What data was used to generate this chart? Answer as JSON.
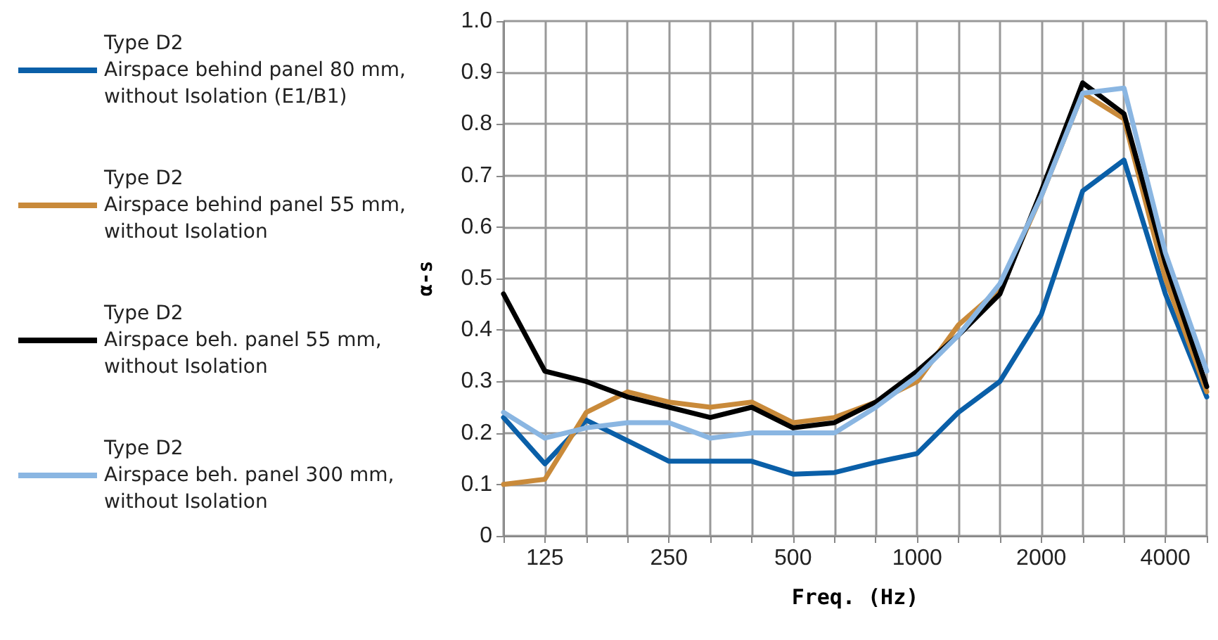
{
  "chart_data": {
    "type": "line",
    "xlabel": "Freq. (Hz)",
    "ylabel": "α-s",
    "categories": [
      null,
      "125",
      null,
      null,
      "250",
      null,
      null,
      "500",
      null,
      null,
      "1000",
      null,
      null,
      "2000",
      null,
      null,
      "4000",
      null
    ],
    "series": [
      {
        "name": "Type D2\nAirspace behind panel 80 mm,\nwithout Isolation (E1/B1)",
        "color": "#0a5fa8",
        "values": [
          0.23,
          0.14,
          0.225,
          0.185,
          0.145,
          0.145,
          0.145,
          0.12,
          0.123,
          0.143,
          0.16,
          0.24,
          0.3,
          0.43,
          0.67,
          0.73,
          0.47,
          0.27
        ]
      },
      {
        "name": "Type D2\nAirspace behind panel 55 mm,\nwithout Isolation",
        "color": "#c98a3a",
        "values": [
          0.1,
          0.11,
          0.24,
          0.28,
          0.26,
          0.25,
          0.26,
          0.22,
          0.23,
          0.26,
          0.3,
          0.41,
          0.48,
          0.66,
          0.86,
          0.81,
          0.5,
          0.28
        ]
      },
      {
        "name": "Type D2\nAirspace beh. panel 55 mm,\nwithout Isolation",
        "color": "#000000",
        "values": [
          0.47,
          0.32,
          0.3,
          0.27,
          0.25,
          0.23,
          0.25,
          0.21,
          0.22,
          0.26,
          0.32,
          0.39,
          0.47,
          0.67,
          0.88,
          0.82,
          0.53,
          0.29
        ]
      },
      {
        "name": "Type D2\nAirspace beh. panel 300 mm,\nwithout Isolation",
        "color": "#8ab6e2",
        "values": [
          0.24,
          0.19,
          0.21,
          0.22,
          0.22,
          0.19,
          0.2,
          0.2,
          0.2,
          0.25,
          0.31,
          0.39,
          0.49,
          0.66,
          0.86,
          0.87,
          0.55,
          0.32
        ]
      }
    ],
    "ylim": [
      0,
      1
    ],
    "yticks": [
      0,
      0.1,
      0.2,
      0.3,
      0.4,
      0.5,
      0.6,
      0.7,
      0.8,
      0.9,
      {
        "value": 1,
        "label": "1.0"
      }
    ],
    "grid": true,
    "legend": "left",
    "marker": "none",
    "line_style": "solid"
  }
}
